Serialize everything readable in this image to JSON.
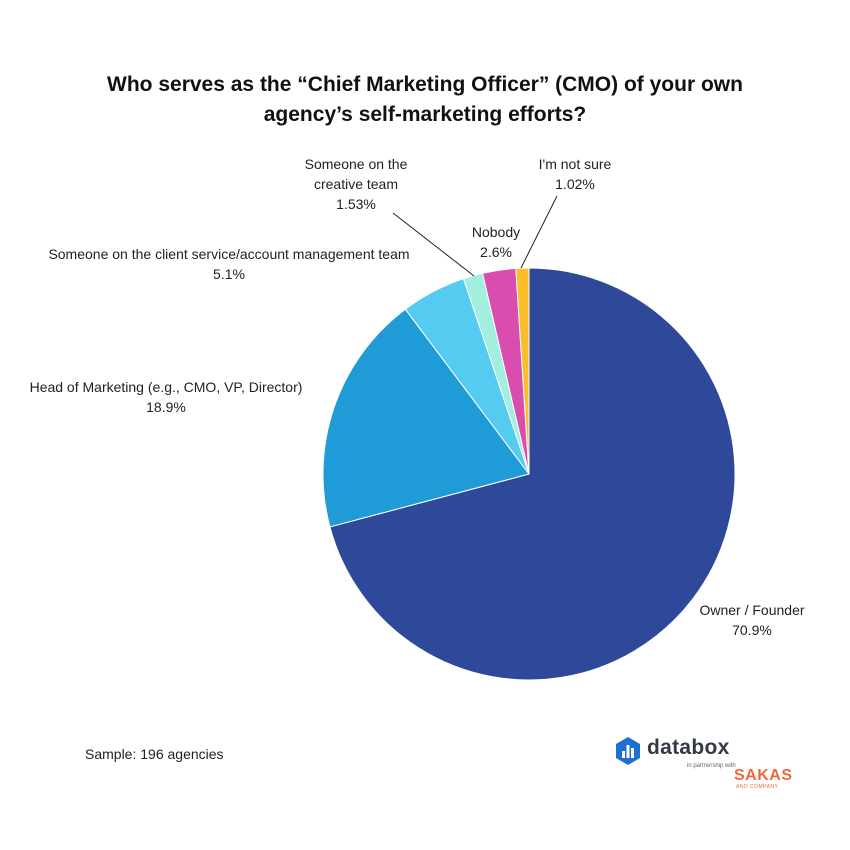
{
  "title": {
    "line1": "Who serves as the “Chief Marketing Officer” (CMO) of your own",
    "line2": "agency’s self-marketing efforts?"
  },
  "chart_data": {
    "type": "pie",
    "title": "Who serves as the “Chief Marketing Officer” (CMO) of your own agency’s self-marketing efforts?",
    "slices": [
      {
        "label_lines": [
          "Owner / Founder"
        ],
        "value_label": "70.9%",
        "value": 70.9,
        "color": "#2e4999"
      },
      {
        "label_lines": [
          "Head of Marketing (e.g., CMO, VP, Director)"
        ],
        "value_label": "18.9%",
        "value": 18.9,
        "color": "#1f9bd7"
      },
      {
        "label_lines": [
          "Someone on the client service/account management team"
        ],
        "value_label": "5.1%",
        "value": 5.1,
        "color": "#55cbf2"
      },
      {
        "label_lines": [
          "Someone on the",
          "creative team"
        ],
        "value_label": "1.53%",
        "value": 1.53,
        "color": "#a2efe0"
      },
      {
        "label_lines": [
          "Nobody"
        ],
        "value_label": "2.6%",
        "value": 2.6,
        "color": "#d84dae"
      },
      {
        "label_lines": [
          "I'm not sure"
        ],
        "value_label": "1.02%",
        "value": 1.02,
        "color": "#fbbd2a"
      }
    ]
  },
  "footer": {
    "sample": "Sample: 196 agencies"
  },
  "branding": {
    "name": "databox",
    "tagline": "in partnership with",
    "partner": "SAKAS",
    "partner_sub": "AND COMPANY",
    "logo_color": "#1f6fd1"
  }
}
